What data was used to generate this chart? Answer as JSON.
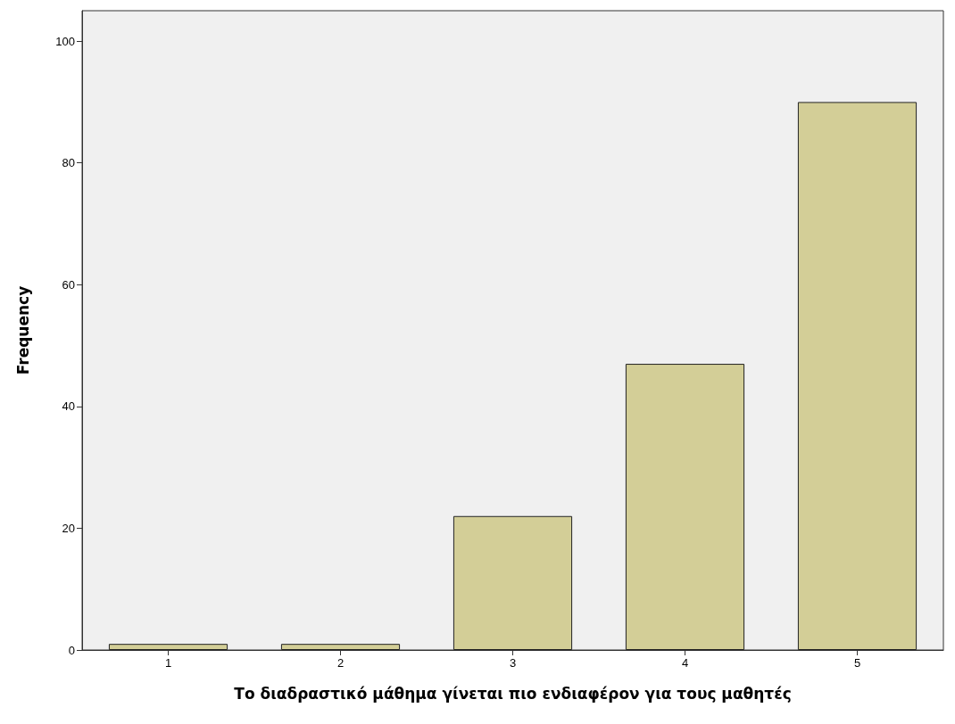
{
  "chart_data": {
    "type": "bar",
    "xlabel": "Το διαδραστικό μάθημα γίνεται πιο ενδιαφέρον για τους μαθητές",
    "ylabel": "Frequency",
    "categories": [
      "1",
      "2",
      "3",
      "4",
      "5"
    ],
    "values": [
      1,
      1,
      22,
      47,
      90
    ],
    "color": "#d3ce97",
    "ylim": [
      0,
      105
    ],
    "yticks": [
      0,
      20,
      40,
      60,
      80,
      100
    ],
    "grid": false
  }
}
